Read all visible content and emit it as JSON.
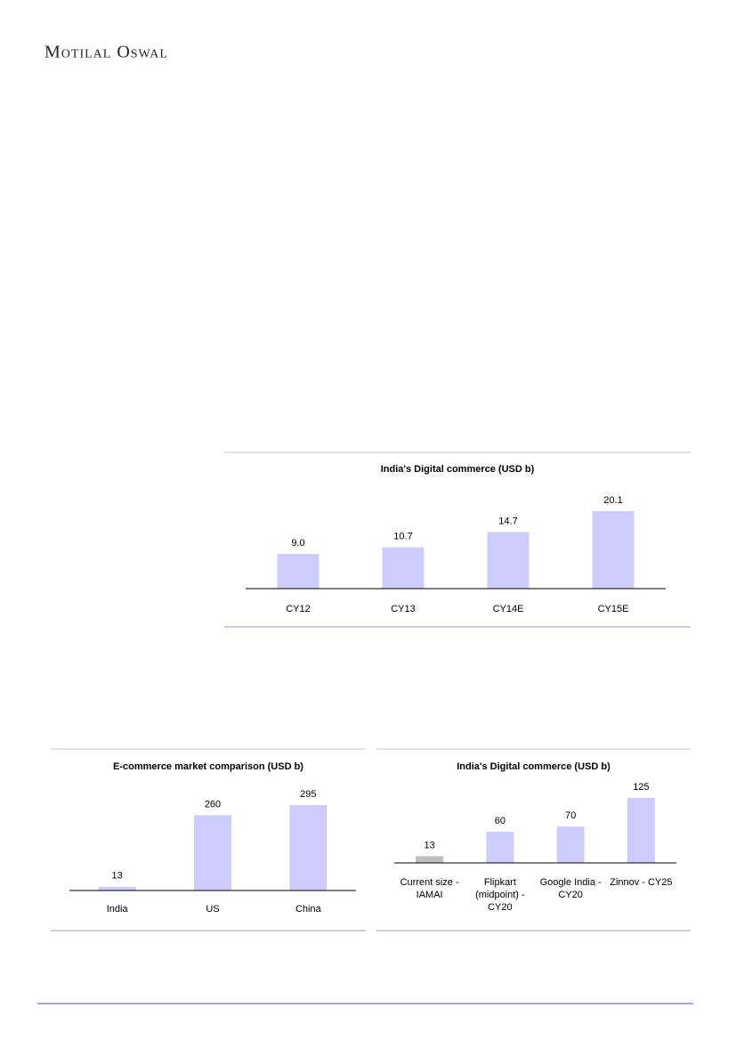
{
  "header": {
    "brand": "Motilal Oswal"
  },
  "chart_data": [
    {
      "type": "bar",
      "title": "India's Digital commerce (USD b)",
      "categories": [
        "CY12",
        "CY13",
        "CY14E",
        "CY15E"
      ],
      "values": [
        9.0,
        10.7,
        14.7,
        20.1
      ],
      "value_labels": [
        "9.0",
        "10.7",
        "14.7",
        "20.1"
      ],
      "color": "#ccccff"
    },
    {
      "type": "bar",
      "title": "E-commerce market comparison (USD b)",
      "categories": [
        "India",
        "US",
        "China"
      ],
      "values": [
        13,
        260,
        295
      ],
      "color": "#ccccff"
    },
    {
      "type": "bar",
      "title": "India's Digital commerce (USD b)",
      "categories": [
        "Current size - IAMAI",
        "Flipkart (midpoint) - CY20",
        "Google India - CY20",
        "Zinnov - CY25"
      ],
      "values": [
        13,
        60,
        70,
        125
      ],
      "colors": [
        "#bfbfbf",
        "#ccccff",
        "#ccccff",
        "#ccccff"
      ]
    }
  ]
}
